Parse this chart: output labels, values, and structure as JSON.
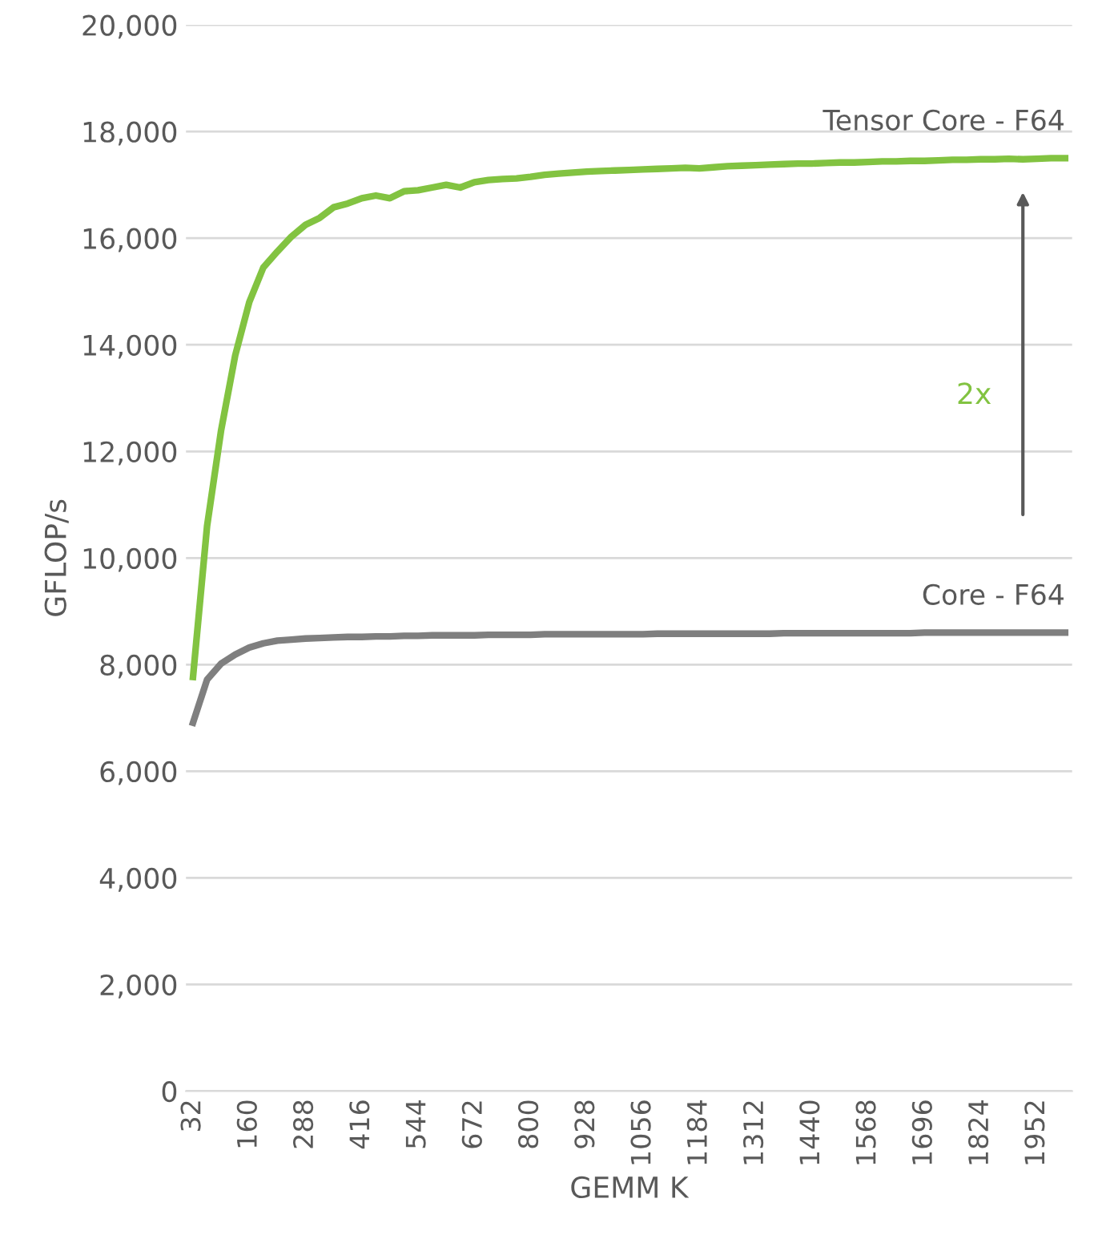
{
  "chart_data": {
    "type": "line",
    "xlabel": "GEMM K",
    "ylabel": "GFLOP/s",
    "categories": [
      "32",
      null,
      null,
      null,
      "160",
      null,
      null,
      null,
      "288",
      null,
      null,
      null,
      "416",
      null,
      null,
      null,
      "544",
      null,
      null,
      null,
      "672",
      null,
      null,
      null,
      "800",
      null,
      null,
      null,
      "928",
      null,
      null,
      null,
      "1056",
      null,
      null,
      null,
      "1184",
      null,
      null,
      null,
      "1312",
      null,
      null,
      null,
      "1440",
      null,
      null,
      null,
      "1568",
      null,
      null,
      null,
      "1696",
      null,
      null,
      null,
      "1824",
      null,
      null,
      null,
      "1952",
      null,
      null
    ],
    "series": [
      {
        "name": "Tensor Core - F64",
        "color": "#82c341",
        "values": [
          7770,
          10600,
          12400,
          13800,
          14800,
          15450,
          15750,
          16030,
          16250,
          16380,
          16580,
          16650,
          16750,
          16800,
          16750,
          16880,
          16900,
          16950,
          17000,
          16950,
          17050,
          17090,
          17110,
          17120,
          17150,
          17190,
          17210,
          17230,
          17250,
          17260,
          17270,
          17280,
          17290,
          17300,
          17310,
          17320,
          17310,
          17330,
          17350,
          17360,
          17370,
          17380,
          17390,
          17400,
          17400,
          17410,
          17420,
          17420,
          17430,
          17440,
          17440,
          17450,
          17450,
          17460,
          17470,
          17470,
          17480,
          17480,
          17490,
          17480,
          17490,
          17500,
          17500
        ]
      },
      {
        "name": "Core - F64",
        "color": "#7f7f7f",
        "values": [
          6910,
          7720,
          8020,
          8190,
          8320,
          8400,
          8450,
          8470,
          8490,
          8500,
          8510,
          8520,
          8520,
          8530,
          8530,
          8540,
          8540,
          8550,
          8550,
          8550,
          8550,
          8560,
          8560,
          8560,
          8560,
          8570,
          8570,
          8570,
          8570,
          8570,
          8570,
          8570,
          8570,
          8580,
          8580,
          8580,
          8580,
          8580,
          8580,
          8580,
          8580,
          8580,
          8590,
          8590,
          8590,
          8590,
          8590,
          8590,
          8590,
          8590,
          8590,
          8590,
          8600,
          8600,
          8600,
          8600,
          8600,
          8600,
          8600,
          8600,
          8600,
          8600,
          8600
        ]
      }
    ],
    "ylim": [
      0,
      20000
    ],
    "yticks": [
      0,
      {
        "value": 2000,
        "label": "2,000"
      },
      {
        "value": 4000,
        "label": "4,000"
      },
      {
        "value": 6000,
        "label": "6,000"
      },
      {
        "value": 8000,
        "label": "8,000"
      },
      {
        "value": 10000,
        "label": "10,000"
      },
      {
        "value": 12000,
        "label": "12,000"
      },
      {
        "value": 14000,
        "label": "14,000"
      },
      {
        "value": 16000,
        "label": "16,000"
      },
      {
        "value": 18000,
        "label": "18,000"
      },
      {
        "value": 20000,
        "label": "20,000"
      }
    ],
    "grid": "y",
    "legend": false,
    "marker": "none",
    "line_style": "solid",
    "annotations": [
      "2x"
    ]
  }
}
